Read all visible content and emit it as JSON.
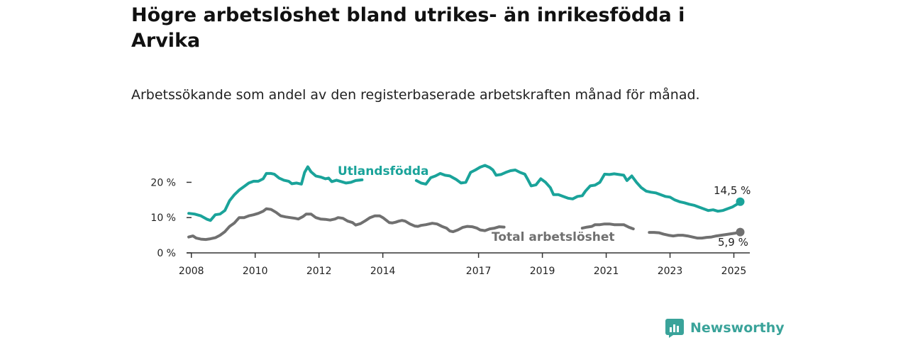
{
  "title": "Högre arbetslöshet bland utrikes- än inrikesfödda i Arvika",
  "subtitle": "Arbetssökande som andel av den registerbaserade arbetskraften månad för månad.",
  "brand": {
    "name": "Newsworthy",
    "icon": "newsworthy-logo-icon"
  },
  "colors": {
    "foreign": "#1aa39a",
    "total": "#707070",
    "axis": "#333333"
  },
  "chart_data": {
    "type": "line",
    "title": "Högre arbetslöshet bland utrikes- än inrikesfödda i Arvika",
    "xlabel": "",
    "ylabel": "",
    "xlim": [
      2007.85,
      2025.5
    ],
    "ylim": [
      0,
      25.5
    ],
    "xticks": [
      {
        "value": 2008,
        "label": "2008"
      },
      {
        "value": 2010,
        "label": "2010"
      },
      {
        "value": 2012,
        "label": "2012"
      },
      {
        "value": 2014,
        "label": "2014"
      },
      {
        "value": 2017,
        "label": "2017"
      },
      {
        "value": 2019,
        "label": "2019"
      },
      {
        "value": 2021,
        "label": "2021"
      },
      {
        "value": 2023,
        "label": "2023"
      },
      {
        "value": 2025,
        "label": "2025"
      }
    ],
    "yticks": [
      {
        "value": 0,
        "label": "0 %"
      },
      {
        "value": 10,
        "label": "10 %"
      },
      {
        "value": 20,
        "label": "20 %"
      }
    ],
    "series": [
      {
        "name": "Utlandsfödda",
        "color": "#1aa39a",
        "end_label": "14,5 %",
        "points": [
          [
            2007.92,
            11.2
          ],
          [
            2008.1,
            11.0
          ],
          [
            2008.3,
            10.5
          ],
          [
            2008.5,
            9.5
          ],
          [
            2008.6,
            9.2
          ],
          [
            2008.75,
            10.8
          ],
          [
            2008.9,
            11.0
          ],
          [
            2009.05,
            12.0
          ],
          [
            2009.2,
            14.8
          ],
          [
            2009.35,
            16.5
          ],
          [
            2009.5,
            17.8
          ],
          [
            2009.65,
            18.8
          ],
          [
            2009.8,
            19.8
          ],
          [
            2009.95,
            20.3
          ],
          [
            2010.1,
            20.3
          ],
          [
            2010.25,
            21.0
          ],
          [
            2010.35,
            22.5
          ],
          [
            2010.5,
            22.5
          ],
          [
            2010.6,
            22.3
          ],
          [
            2010.75,
            21.2
          ],
          [
            2010.9,
            20.6
          ],
          [
            2011.05,
            20.3
          ],
          [
            2011.15,
            19.6
          ],
          [
            2011.3,
            19.8
          ],
          [
            2011.45,
            19.5
          ],
          [
            2011.55,
            22.8
          ],
          [
            2011.65,
            24.4
          ],
          [
            2011.75,
            23.0
          ],
          [
            2011.9,
            21.8
          ],
          [
            2012.05,
            21.5
          ],
          [
            2012.2,
            21.0
          ],
          [
            2012.3,
            21.2
          ],
          [
            2012.4,
            20.2
          ],
          [
            2012.55,
            20.6
          ],
          [
            2012.7,
            20.2
          ],
          [
            2012.85,
            19.8
          ],
          [
            2013.0,
            20.0
          ],
          [
            2013.15,
            20.5
          ],
          [
            2013.35,
            20.7
          ]
        ],
        "points2": [
          [
            2015.05,
            20.5
          ],
          [
            2015.2,
            19.8
          ],
          [
            2015.35,
            19.5
          ],
          [
            2015.5,
            21.3
          ],
          [
            2015.65,
            21.8
          ],
          [
            2015.8,
            22.5
          ],
          [
            2015.95,
            22.0
          ],
          [
            2016.1,
            21.8
          ],
          [
            2016.3,
            20.8
          ],
          [
            2016.45,
            19.8
          ],
          [
            2016.6,
            20.0
          ],
          [
            2016.75,
            22.8
          ],
          [
            2016.9,
            23.5
          ],
          [
            2017.05,
            24.3
          ],
          [
            2017.2,
            24.8
          ],
          [
            2017.35,
            24.2
          ],
          [
            2017.45,
            23.5
          ],
          [
            2017.55,
            22.0
          ],
          [
            2017.7,
            22.2
          ],
          [
            2017.85,
            22.8
          ],
          [
            2018.0,
            23.3
          ],
          [
            2018.15,
            23.5
          ],
          [
            2018.3,
            22.8
          ],
          [
            2018.45,
            22.3
          ],
          [
            2018.55,
            20.7
          ],
          [
            2018.65,
            19.0
          ],
          [
            2018.8,
            19.3
          ],
          [
            2018.95,
            21.0
          ],
          [
            2019.1,
            20.0
          ],
          [
            2019.25,
            18.5
          ],
          [
            2019.35,
            16.5
          ],
          [
            2019.5,
            16.5
          ],
          [
            2019.65,
            16.0
          ],
          [
            2019.8,
            15.5
          ],
          [
            2019.95,
            15.3
          ],
          [
            2020.1,
            16.0
          ],
          [
            2020.25,
            16.2
          ],
          [
            2020.35,
            17.5
          ],
          [
            2020.5,
            19.0
          ],
          [
            2020.65,
            19.2
          ],
          [
            2020.8,
            20.0
          ],
          [
            2020.95,
            22.3
          ],
          [
            2021.1,
            22.2
          ],
          [
            2021.25,
            22.4
          ],
          [
            2021.4,
            22.2
          ],
          [
            2021.55,
            22.0
          ],
          [
            2021.65,
            20.5
          ],
          [
            2021.8,
            21.8
          ],
          [
            2021.95,
            20.0
          ],
          [
            2022.1,
            18.5
          ],
          [
            2022.25,
            17.5
          ],
          [
            2022.4,
            17.2
          ],
          [
            2022.55,
            17.0
          ],
          [
            2022.7,
            16.5
          ],
          [
            2022.85,
            16.0
          ],
          [
            2023.0,
            15.8
          ],
          [
            2023.15,
            15.0
          ],
          [
            2023.3,
            14.5
          ],
          [
            2023.45,
            14.2
          ],
          [
            2023.6,
            13.8
          ],
          [
            2023.75,
            13.5
          ],
          [
            2023.9,
            13.0
          ],
          [
            2024.05,
            12.5
          ],
          [
            2024.2,
            12.0
          ],
          [
            2024.35,
            12.2
          ],
          [
            2024.5,
            11.8
          ],
          [
            2024.65,
            12.0
          ],
          [
            2024.8,
            12.5
          ],
          [
            2024.95,
            13.0
          ],
          [
            2025.1,
            13.8
          ],
          [
            2025.2,
            14.5
          ]
        ]
      },
      {
        "name": "Total arbetslöshet",
        "color": "#707070",
        "end_label": "5,9 %",
        "points": [
          [
            2007.92,
            4.5
          ],
          [
            2008.05,
            4.8
          ],
          [
            2008.15,
            4.2
          ],
          [
            2008.3,
            3.9
          ],
          [
            2008.45,
            3.8
          ],
          [
            2008.6,
            4.0
          ],
          [
            2008.75,
            4.3
          ],
          [
            2008.9,
            5.0
          ],
          [
            2009.05,
            6.0
          ],
          [
            2009.2,
            7.5
          ],
          [
            2009.35,
            8.5
          ],
          [
            2009.5,
            10.0
          ],
          [
            2009.65,
            10.0
          ],
          [
            2009.8,
            10.5
          ],
          [
            2009.95,
            10.8
          ],
          [
            2010.1,
            11.2
          ],
          [
            2010.25,
            11.8
          ],
          [
            2010.35,
            12.5
          ],
          [
            2010.5,
            12.3
          ],
          [
            2010.65,
            11.5
          ],
          [
            2010.8,
            10.5
          ],
          [
            2010.95,
            10.2
          ],
          [
            2011.1,
            10.0
          ],
          [
            2011.25,
            9.8
          ],
          [
            2011.35,
            9.6
          ],
          [
            2011.5,
            10.3
          ],
          [
            2011.6,
            11.0
          ],
          [
            2011.75,
            11.0
          ],
          [
            2011.9,
            10.0
          ],
          [
            2012.05,
            9.6
          ],
          [
            2012.2,
            9.5
          ],
          [
            2012.35,
            9.3
          ],
          [
            2012.5,
            9.6
          ],
          [
            2012.6,
            10.0
          ],
          [
            2012.75,
            9.8
          ],
          [
            2012.9,
            9.0
          ],
          [
            2013.05,
            8.6
          ],
          [
            2013.15,
            7.9
          ],
          [
            2013.3,
            8.3
          ],
          [
            2013.45,
            9.1
          ],
          [
            2013.6,
            10.0
          ],
          [
            2013.75,
            10.5
          ],
          [
            2013.9,
            10.5
          ],
          [
            2014.0,
            10.0
          ],
          [
            2014.1,
            9.3
          ],
          [
            2014.2,
            8.6
          ],
          [
            2014.3,
            8.5
          ],
          [
            2014.4,
            8.7
          ],
          [
            2014.5,
            9.0
          ],
          [
            2014.6,
            9.2
          ],
          [
            2014.7,
            9.0
          ],
          [
            2014.85,
            8.2
          ],
          [
            2015.0,
            7.6
          ],
          [
            2015.1,
            7.5
          ],
          [
            2015.2,
            7.8
          ],
          [
            2015.35,
            8.0
          ],
          [
            2015.45,
            8.2
          ],
          [
            2015.55,
            8.4
          ],
          [
            2015.7,
            8.2
          ],
          [
            2015.85,
            7.5
          ],
          [
            2016.0,
            7.0
          ],
          [
            2016.1,
            6.2
          ],
          [
            2016.2,
            6.0
          ],
          [
            2016.35,
            6.5
          ],
          [
            2016.5,
            7.2
          ],
          [
            2016.65,
            7.5
          ],
          [
            2016.8,
            7.4
          ],
          [
            2016.95,
            7.0
          ],
          [
            2017.05,
            6.5
          ],
          [
            2017.2,
            6.3
          ],
          [
            2017.35,
            6.8
          ],
          [
            2017.5,
            7.0
          ],
          [
            2017.65,
            7.4
          ],
          [
            2017.8,
            7.3
          ]
        ],
        "points2": [
          [
            2020.25,
            7.0
          ],
          [
            2020.4,
            7.3
          ],
          [
            2020.55,
            7.5
          ],
          [
            2020.65,
            8.0
          ],
          [
            2020.8,
            8.0
          ],
          [
            2020.95,
            8.2
          ],
          [
            2021.1,
            8.2
          ],
          [
            2021.25,
            8.0
          ],
          [
            2021.4,
            8.0
          ],
          [
            2021.55,
            8.0
          ],
          [
            2021.7,
            7.3
          ],
          [
            2021.85,
            6.8
          ]
        ],
        "points3": [
          [
            2022.35,
            5.8
          ],
          [
            2022.5,
            5.8
          ],
          [
            2022.65,
            5.7
          ],
          [
            2022.8,
            5.3
          ],
          [
            2022.95,
            5.0
          ],
          [
            2023.1,
            4.8
          ],
          [
            2023.25,
            5.0
          ],
          [
            2023.4,
            5.0
          ],
          [
            2023.55,
            4.8
          ],
          [
            2023.7,
            4.5
          ],
          [
            2023.85,
            4.2
          ],
          [
            2024.0,
            4.2
          ],
          [
            2024.15,
            4.4
          ],
          [
            2024.3,
            4.5
          ],
          [
            2024.45,
            4.8
          ],
          [
            2024.6,
            5.0
          ],
          [
            2024.75,
            5.2
          ],
          [
            2024.9,
            5.4
          ],
          [
            2025.05,
            5.6
          ],
          [
            2025.2,
            5.9
          ]
        ]
      }
    ]
  }
}
